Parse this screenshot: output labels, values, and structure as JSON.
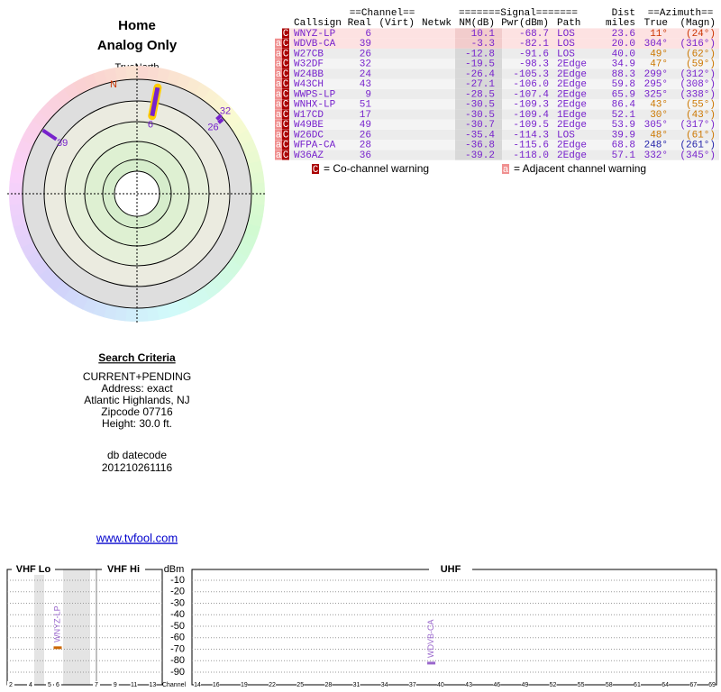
{
  "header": {
    "title": "Home",
    "subtitle": "Analog Only"
  },
  "polar": {
    "caption": "TrueNorth",
    "north": "N",
    "stations": [
      {
        "label": "6",
        "azimuth": 11,
        "color": "#7722cc"
      },
      {
        "label": "32",
        "azimuth": 47,
        "color": "#7722cc"
      },
      {
        "label": "26",
        "azimuth": 49,
        "color": "#7722cc"
      },
      {
        "label": "39",
        "azimuth": 304,
        "color": "#7722cc"
      }
    ]
  },
  "table": {
    "groups": [
      "==Channel==",
      "=======Signal=======",
      "Dist",
      "==Azimuth=="
    ],
    "columns": [
      "Callsign",
      "Real",
      "(Virt)",
      "Netwk",
      "NM(dB)",
      "Pwr(dBm)",
      "Path",
      "miles",
      "True",
      "(Magn)"
    ],
    "rows": [
      {
        "warnings": [
          "C"
        ],
        "callsign": "WNYZ-LP",
        "real": "6",
        "nm": "10.1",
        "pwr": "-68.7",
        "path": "LOS",
        "miles": "23.6",
        "true": "11°",
        "magn": "(24°)",
        "color": "#cc3300"
      },
      {
        "warnings": [
          "a",
          "C"
        ],
        "callsign": "WDVB-CA",
        "real": "39",
        "nm": "-3.3",
        "pwr": "-82.1",
        "path": "LOS",
        "miles": "20.0",
        "true": "304°",
        "magn": "(316°)",
        "color": "#7722cc"
      },
      {
        "warnings": [
          "a",
          "C"
        ],
        "callsign": "W27CB",
        "real": "26",
        "nm": "-12.8",
        "pwr": "-91.6",
        "path": "LOS",
        "miles": "40.0",
        "true": "49°",
        "magn": "(62°)",
        "color": "#cc7700"
      },
      {
        "warnings": [
          "a",
          "C"
        ],
        "callsign": "W32DF",
        "real": "32",
        "nm": "-19.5",
        "pwr": "-98.3",
        "path": "2Edge",
        "miles": "34.9",
        "true": "47°",
        "magn": "(59°)",
        "color": "#cc7700"
      },
      {
        "warnings": [
          "a",
          "C"
        ],
        "callsign": "W24BB",
        "real": "24",
        "nm": "-26.4",
        "pwr": "-105.3",
        "path": "2Edge",
        "miles": "88.3",
        "true": "299°",
        "magn": "(312°)",
        "color": "#7722cc"
      },
      {
        "warnings": [
          "a",
          "C"
        ],
        "callsign": "W43CH",
        "real": "43",
        "nm": "-27.1",
        "pwr": "-106.0",
        "path": "2Edge",
        "miles": "59.8",
        "true": "295°",
        "magn": "(308°)",
        "color": "#7722cc"
      },
      {
        "warnings": [
          "a",
          "C"
        ],
        "callsign": "WWPS-LP",
        "real": "9",
        "nm": "-28.5",
        "pwr": "-107.4",
        "path": "2Edge",
        "miles": "65.9",
        "true": "325°",
        "magn": "(338°)",
        "color": "#7722cc"
      },
      {
        "warnings": [
          "a",
          "C"
        ],
        "callsign": "WNHX-LP",
        "real": "51",
        "nm": "-30.5",
        "pwr": "-109.3",
        "path": "2Edge",
        "miles": "86.4",
        "true": "43°",
        "magn": "(55°)",
        "color": "#cc7700"
      },
      {
        "warnings": [
          "a",
          "C"
        ],
        "callsign": "W17CD",
        "real": "17",
        "nm": "-30.5",
        "pwr": "-109.4",
        "path": "1Edge",
        "miles": "52.1",
        "true": "30°",
        "magn": "(43°)",
        "color": "#cc7700"
      },
      {
        "warnings": [
          "a",
          "C"
        ],
        "callsign": "W49BE",
        "real": "49",
        "nm": "-30.7",
        "pwr": "-109.5",
        "path": "2Edge",
        "miles": "53.9",
        "true": "305°",
        "magn": "(317°)",
        "color": "#7722cc"
      },
      {
        "warnings": [
          "a",
          "C"
        ],
        "callsign": "W26DC",
        "real": "26",
        "nm": "-35.4",
        "pwr": "-114.3",
        "path": "LOS",
        "miles": "39.9",
        "true": "48°",
        "magn": "(61°)",
        "color": "#cc7700"
      },
      {
        "warnings": [
          "a",
          "C"
        ],
        "callsign": "WFPA-CA",
        "real": "28",
        "nm": "-36.8",
        "pwr": "-115.6",
        "path": "2Edge",
        "miles": "68.8",
        "true": "248°",
        "magn": "(261°)",
        "color": "#2222aa"
      },
      {
        "warnings": [
          "a",
          "C"
        ],
        "callsign": "W36AZ",
        "real": "36",
        "nm": "-39.2",
        "pwr": "-118.0",
        "path": "2Edge",
        "miles": "57.1",
        "true": "332°",
        "magn": "(345°)",
        "color": "#7722cc"
      }
    ]
  },
  "legend": [
    {
      "icon": "C",
      "text": "= Co-channel warning"
    },
    {
      "icon": "a",
      "text": "= Adjacent channel warning"
    }
  ],
  "criteria": {
    "title": "Search Criteria",
    "lines": [
      "CURRENT+PENDING",
      "Address: exact",
      "Atlantic Highlands, NJ",
      "Zipcode 07716",
      "Height: 30.0 ft."
    ],
    "datecode_label": "db datecode",
    "datecode": "201210261116"
  },
  "link": "www.tvfool.com",
  "spectrum": {
    "bands": [
      "VHF Lo",
      "VHF Hi",
      "UHF"
    ],
    "unit": "dBm",
    "x_label": "Channel",
    "yticks": [
      -10,
      -20,
      -30,
      -40,
      -50,
      -60,
      -70,
      -80,
      -90
    ],
    "vhf_ticks": [
      2,
      4,
      5,
      6,
      7,
      9,
      11,
      13
    ],
    "uhf_ticks": [
      14,
      16,
      19,
      22,
      25,
      28,
      31,
      34,
      37,
      40,
      43,
      46,
      49,
      52,
      55,
      58,
      61,
      64,
      67,
      69
    ],
    "stations": [
      {
        "callsign": "WNYZ-LP",
        "channel": 6,
        "value": -68.7,
        "color": "#cc6600"
      },
      {
        "callsign": "WDVB-CA",
        "channel": 39,
        "value": -82.1,
        "color": "#9966cc"
      }
    ]
  }
}
